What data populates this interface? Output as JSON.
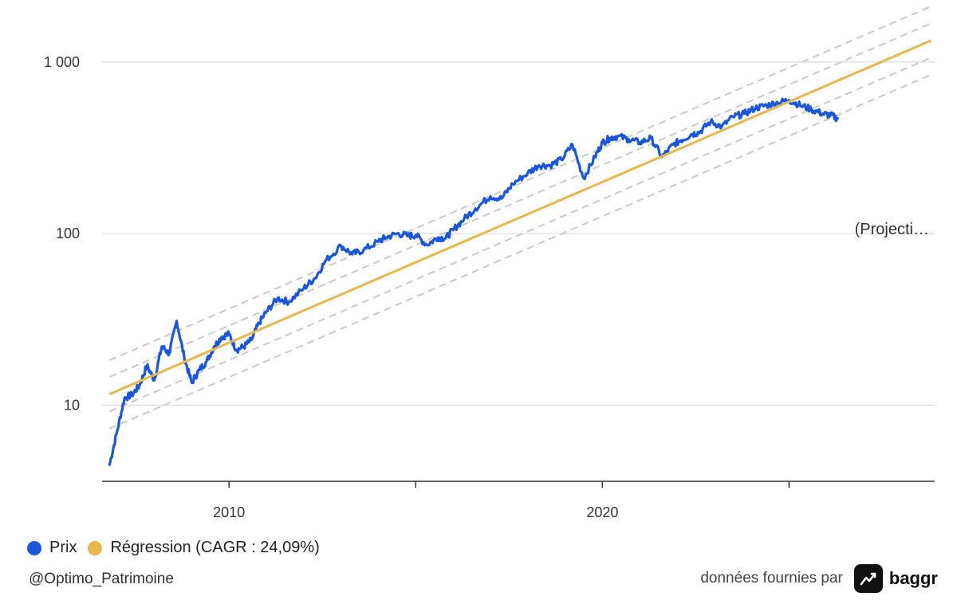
{
  "chart_data": {
    "type": "line",
    "y_scale": "log",
    "ylim": [
      3.6,
      2300
    ],
    "xlim": [
      2006.6,
      2028.9
    ],
    "y_ticks": [
      10,
      100,
      1000
    ],
    "y_tick_labels": [
      "10",
      "100",
      "1 000"
    ],
    "x_ticks": [
      2010,
      2015,
      2020,
      2025
    ],
    "x_tick_labels": [
      "2010",
      "",
      "2020",
      ""
    ],
    "grid": true,
    "annotation": "(Projecti…",
    "legend_position": "bottom-left",
    "series": [
      {
        "name": "Prix",
        "color": "#1a56db",
        "x": [
          2006.8,
          2007.0,
          2007.2,
          2007.4,
          2007.6,
          2007.8,
          2008.0,
          2008.2,
          2008.4,
          2008.6,
          2008.8,
          2009.0,
          2009.2,
          2009.4,
          2009.6,
          2009.8,
          2010.0,
          2010.2,
          2010.4,
          2010.6,
          2010.8,
          2011.0,
          2011.3,
          2011.6,
          2012.0,
          2012.3,
          2012.6,
          2013.0,
          2013.3,
          2013.6,
          2014.0,
          2014.2,
          2014.5,
          2014.8,
          2015.0,
          2015.3,
          2015.6,
          2015.8,
          2016.0,
          2016.3,
          2016.6,
          2017.0,
          2017.3,
          2017.6,
          2018.0,
          2018.3,
          2018.6,
          2018.9,
          2019.2,
          2019.5,
          2019.8,
          2020.0,
          2020.2,
          2020.4,
          2020.7,
          2021.0,
          2021.3,
          2021.6,
          2021.9,
          2022.1,
          2022.4,
          2022.6,
          2022.9,
          2023.2,
          2023.5,
          2023.8,
          2024.1,
          2024.4,
          2024.7,
          2025.0,
          2025.3,
          2025.6,
          2025.9,
          2026.1,
          2026.3
        ],
        "values": [
          4.5,
          7,
          11,
          11.5,
          13,
          17,
          14,
          22,
          20,
          31,
          19,
          13.5,
          16,
          18,
          22,
          25,
          26,
          21,
          22,
          24,
          30,
          35,
          42,
          40,
          48,
          55,
          70,
          85,
          76,
          80,
          90,
          95,
          100,
          97,
          98,
          86,
          95,
          94,
          105,
          122,
          140,
          165,
          160,
          195,
          225,
          250,
          250,
          270,
          330,
          210,
          280,
          340,
          360,
          370,
          355,
          340,
          360,
          280,
          330,
          350,
          380,
          390,
          450,
          420,
          480,
          500,
          540,
          560,
          580,
          600,
          560,
          530,
          500,
          490,
          470
        ]
      },
      {
        "name": "Régression (CAGR : 24,09%)",
        "color": "#e6b84d",
        "x": [
          2006.8,
          2028.8
        ],
        "values": [
          11.6,
          1335
        ]
      },
      {
        "name": "",
        "style": "dashed",
        "color": "#c9c9c9",
        "x": [
          2006.8,
          2028.8
        ],
        "values": [
          18.3,
          2110
        ]
      },
      {
        "name": "",
        "style": "dashed",
        "color": "#c9c9c9",
        "x": [
          2006.8,
          2028.8
        ],
        "values": [
          14.6,
          1680
        ]
      },
      {
        "name": "",
        "style": "dashed",
        "color": "#c9c9c9",
        "x": [
          2006.8,
          2028.8
        ],
        "values": [
          9.2,
          1060
        ]
      },
      {
        "name": "",
        "style": "dashed",
        "color": "#c9c9c9",
        "x": [
          2006.8,
          2028.8
        ],
        "values": [
          7.3,
          843
        ]
      }
    ]
  },
  "legend": {
    "items": [
      {
        "label": "Prix",
        "color": "#1a56db"
      },
      {
        "label": "Régression (CAGR : 24,09%)",
        "color": "#e6b84d"
      }
    ]
  },
  "footer": {
    "author": "@Optimo_Patrimoine",
    "source_label": "données fournies par",
    "brand": "baggr"
  }
}
